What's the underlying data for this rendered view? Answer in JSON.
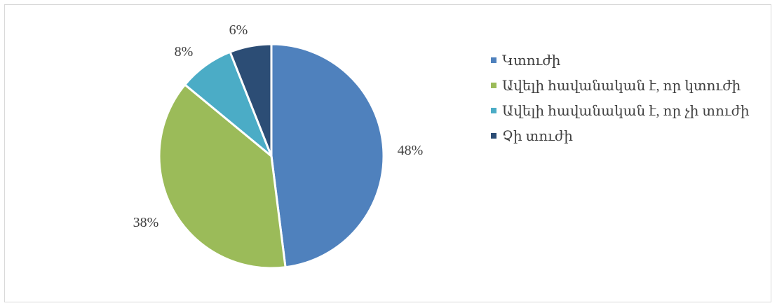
{
  "chart_data": {
    "type": "pie",
    "title": "",
    "categories": [
      "Կտուժի",
      "Ավելի հավանական է, որ կտուժի",
      "Ավելի հավանական է, որ չի տուժի",
      "Չի տուժի"
    ],
    "values": [
      48,
      38,
      8,
      6
    ],
    "labels": [
      "48%",
      "38%",
      "8%",
      "6%"
    ],
    "colors": [
      "#4f81bd",
      "#9bbb59",
      "#4bacc6",
      "#2c4d75"
    ],
    "legend_position": "right",
    "start_angle": "top, clockwise"
  }
}
